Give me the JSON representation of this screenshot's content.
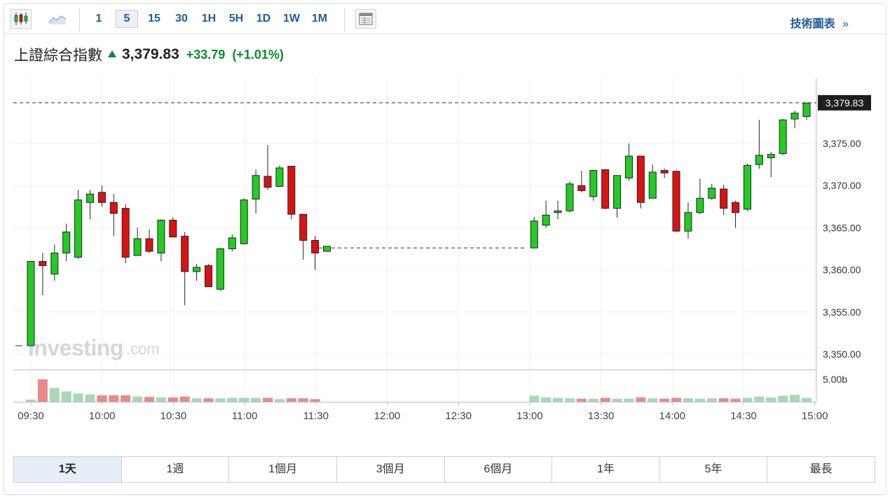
{
  "toolbar": {
    "candles_icon": "candlestick-icon",
    "line_icon": "line-chart-icon",
    "intervals": [
      "1",
      "5",
      "15",
      "30",
      "1H",
      "5H",
      "1D",
      "1W",
      "1M"
    ],
    "active_interval": "5",
    "table_icon": "table-view-icon",
    "tech_chart_link": "技術圖表",
    "tech_chart_chevron": "»"
  },
  "title": {
    "name": "上證綜合指數",
    "price": "3,379.83",
    "change": "+33.79",
    "change_pct": "(+1.01%)",
    "direction": "up"
  },
  "watermark": "Investing.com",
  "ranges": [
    "1天",
    "1週",
    "1個月",
    "3個月",
    "6個月",
    "1年",
    "5年",
    "最長"
  ],
  "active_range": "1天",
  "colors": {
    "up": "#22cc22",
    "down": "#dd1111",
    "price_tag_bg": "#1e1e1e",
    "vol_up": "#a8d8b4",
    "vol_down": "#e88a8a",
    "accent_link": "#1f5d99"
  },
  "chart_data": {
    "type": "candlestick",
    "price_axis": {
      "ticks": [
        3350,
        3355,
        3360,
        3365,
        3370,
        3375
      ],
      "tick_labels": [
        "3,350.00",
        "3,355.00",
        "3,360.00",
        "3,365.00",
        "3,370.00",
        "3,375.00"
      ],
      "current_price": 3379.83,
      "current_price_label": "3,379.83",
      "range": [
        3348,
        3382.5
      ]
    },
    "time_axis": {
      "tick_labels": [
        "09:30",
        "10:00",
        "10:30",
        "11:00",
        "11:30",
        "12:00",
        "12:30",
        "13:00",
        "13:30",
        "14:00",
        "14:30",
        "15:00"
      ]
    },
    "volume_axis": {
      "label": "5.00b"
    },
    "prev_close_gap_level": 3362.6,
    "candles": [
      {
        "t": "09:30",
        "o": 3351.0,
        "h": 3361.0,
        "l": 3351.0,
        "c": 3361.0,
        "v": 0.25
      },
      {
        "t": "09:35",
        "o": 3361.0,
        "h": 3362.0,
        "l": 3357.0,
        "c": 3360.5,
        "v": 2.6
      },
      {
        "t": "09:40",
        "o": 3359.5,
        "h": 3363.0,
        "l": 3358.7,
        "c": 3362.0,
        "v": 1.6
      },
      {
        "t": "09:45",
        "o": 3362.0,
        "h": 3365.5,
        "l": 3361.0,
        "c": 3364.5,
        "v": 1.2
      },
      {
        "t": "09:50",
        "o": 3361.5,
        "h": 3369.5,
        "l": 3361.3,
        "c": 3368.3,
        "v": 0.95
      },
      {
        "t": "09:55",
        "o": 3368.0,
        "h": 3369.5,
        "l": 3366.0,
        "c": 3369.0,
        "v": 0.85
      },
      {
        "t": "10:00",
        "o": 3369.2,
        "h": 3370.0,
        "l": 3367.5,
        "c": 3368.0,
        "v": 0.75
      },
      {
        "t": "10:05",
        "o": 3368.0,
        "h": 3369.0,
        "l": 3364.0,
        "c": 3366.7,
        "v": 0.75
      },
      {
        "t": "10:10",
        "o": 3367.3,
        "h": 3367.8,
        "l": 3360.8,
        "c": 3361.5,
        "v": 0.75
      },
      {
        "t": "10:15",
        "o": 3361.7,
        "h": 3365.0,
        "l": 3361.7,
        "c": 3363.7,
        "v": 0.6
      },
      {
        "t": "10:20",
        "o": 3363.7,
        "h": 3364.8,
        "l": 3362.0,
        "c": 3362.2,
        "v": 0.55
      },
      {
        "t": "10:25",
        "o": 3362.0,
        "h": 3366.0,
        "l": 3361.0,
        "c": 3365.9,
        "v": 0.5
      },
      {
        "t": "10:30",
        "o": 3365.9,
        "h": 3366.2,
        "l": 3364.0,
        "c": 3363.9,
        "v": 0.5
      },
      {
        "t": "10:35",
        "o": 3364.0,
        "h": 3364.5,
        "l": 3355.8,
        "c": 3359.8,
        "v": 0.6
      },
      {
        "t": "10:40",
        "o": 3359.8,
        "h": 3360.7,
        "l": 3358.7,
        "c": 3360.3,
        "v": 0.4
      },
      {
        "t": "10:45",
        "o": 3360.5,
        "h": 3360.7,
        "l": 3358.0,
        "c": 3358.0,
        "v": 0.4
      },
      {
        "t": "10:50",
        "o": 3357.7,
        "h": 3362.6,
        "l": 3357.5,
        "c": 3362.5,
        "v": 0.4
      },
      {
        "t": "10:55",
        "o": 3362.5,
        "h": 3364.2,
        "l": 3362.2,
        "c": 3363.8,
        "v": 0.45
      },
      {
        "t": "11:00",
        "o": 3363.1,
        "h": 3368.5,
        "l": 3363.0,
        "c": 3368.3,
        "v": 0.45
      },
      {
        "t": "11:05",
        "o": 3368.4,
        "h": 3371.9,
        "l": 3366.7,
        "c": 3371.2,
        "v": 0.45
      },
      {
        "t": "11:10",
        "o": 3371.1,
        "h": 3374.8,
        "l": 3369.5,
        "c": 3369.8,
        "v": 0.45
      },
      {
        "t": "11:15",
        "o": 3369.9,
        "h": 3372.4,
        "l": 3369.9,
        "c": 3372.1,
        "v": 0.3
      },
      {
        "t": "11:20",
        "o": 3372.3,
        "h": 3372.3,
        "l": 3366.0,
        "c": 3366.6,
        "v": 0.4
      },
      {
        "t": "11:25",
        "o": 3366.6,
        "h": 3366.6,
        "l": 3361.2,
        "c": 3363.5,
        "v": 0.4
      },
      {
        "t": "11:30",
        "o": 3363.5,
        "h": 3364.0,
        "l": 3360.0,
        "c": 3362.0,
        "v": 0.3
      },
      {
        "t": "11:30b",
        "o": 3362.2,
        "h": 3362.8,
        "l": 3362.2,
        "c": 3362.8,
        "v": 0.0
      },
      {
        "t": "13:00",
        "o": 3362.6,
        "h": 3366.3,
        "l": 3362.6,
        "c": 3365.8,
        "v": 0.7
      },
      {
        "t": "13:05",
        "o": 3365.3,
        "h": 3368.2,
        "l": 3365.0,
        "c": 3366.5,
        "v": 0.5
      },
      {
        "t": "13:10",
        "o": 3366.8,
        "h": 3368.2,
        "l": 3366.0,
        "c": 3367.0,
        "v": 0.45
      },
      {
        "t": "13:15",
        "o": 3367.0,
        "h": 3370.5,
        "l": 3366.8,
        "c": 3370.2,
        "v": 0.4
      },
      {
        "t": "13:20",
        "o": 3370.0,
        "h": 3371.8,
        "l": 3369.2,
        "c": 3369.4,
        "v": 0.35
      },
      {
        "t": "13:25",
        "o": 3368.7,
        "h": 3371.9,
        "l": 3368.2,
        "c": 3371.8,
        "v": 0.35
      },
      {
        "t": "13:30",
        "o": 3371.9,
        "h": 3371.9,
        "l": 3367.2,
        "c": 3367.3,
        "v": 0.45
      },
      {
        "t": "13:35",
        "o": 3367.3,
        "h": 3371.2,
        "l": 3366.2,
        "c": 3371.2,
        "v": 0.35
      },
      {
        "t": "13:40",
        "o": 3370.9,
        "h": 3375.0,
        "l": 3370.6,
        "c": 3373.5,
        "v": 0.35
      },
      {
        "t": "13:45",
        "o": 3373.5,
        "h": 3373.5,
        "l": 3367.3,
        "c": 3368.0,
        "v": 0.5
      },
      {
        "t": "13:50",
        "o": 3368.5,
        "h": 3372.5,
        "l": 3368.5,
        "c": 3371.6,
        "v": 0.4
      },
      {
        "t": "13:55",
        "o": 3371.8,
        "h": 3372.0,
        "l": 3370.9,
        "c": 3371.5,
        "v": 0.35
      },
      {
        "t": "14:00",
        "o": 3371.7,
        "h": 3371.8,
        "l": 3364.5,
        "c": 3364.6,
        "v": 0.45
      },
      {
        "t": "14:05",
        "o": 3364.6,
        "h": 3368.0,
        "l": 3363.7,
        "c": 3366.8,
        "v": 0.4
      },
      {
        "t": "14:10",
        "o": 3366.8,
        "h": 3370.8,
        "l": 3366.6,
        "c": 3368.5,
        "v": 0.35
      },
      {
        "t": "14:15",
        "o": 3368.5,
        "h": 3370.2,
        "l": 3368.3,
        "c": 3369.7,
        "v": 0.4
      },
      {
        "t": "14:20",
        "o": 3369.6,
        "h": 3370.1,
        "l": 3366.5,
        "c": 3367.3,
        "v": 0.4
      },
      {
        "t": "14:25",
        "o": 3368.0,
        "h": 3368.2,
        "l": 3365.0,
        "c": 3366.8,
        "v": 0.35
      },
      {
        "t": "14:30",
        "o": 3367.2,
        "h": 3372.6,
        "l": 3367.0,
        "c": 3372.4,
        "v": 0.45
      },
      {
        "t": "14:35",
        "o": 3372.5,
        "h": 3377.8,
        "l": 3372.0,
        "c": 3373.6,
        "v": 0.6
      },
      {
        "t": "14:40",
        "o": 3373.3,
        "h": 3374.0,
        "l": 3371.0,
        "c": 3373.7,
        "v": 0.5
      },
      {
        "t": "14:45",
        "o": 3373.8,
        "h": 3377.9,
        "l": 3373.6,
        "c": 3377.8,
        "v": 0.7
      },
      {
        "t": "14:50",
        "o": 3377.9,
        "h": 3378.9,
        "l": 3376.8,
        "c": 3378.6,
        "v": 0.8
      },
      {
        "t": "14:55",
        "o": 3378.2,
        "h": 3379.8,
        "l": 3377.8,
        "c": 3379.8,
        "v": 0.45
      }
    ]
  }
}
